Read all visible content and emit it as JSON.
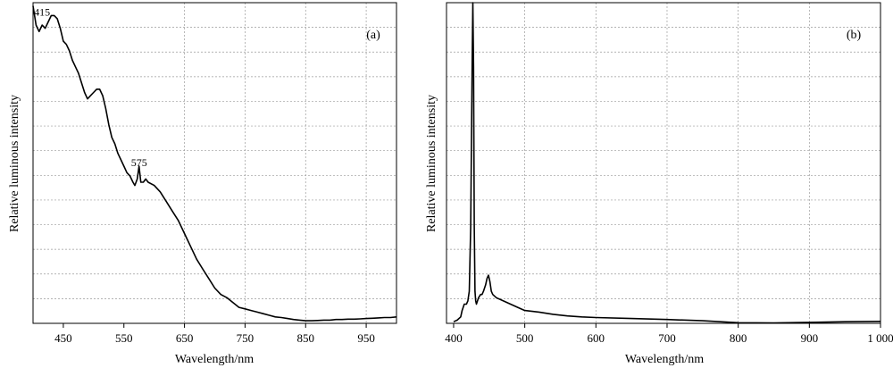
{
  "chart_data": [
    {
      "type": "line",
      "panel_label": "(a)",
      "xlabel": "Wavelength/nm",
      "ylabel": "Relative luminous intensity",
      "xlim": [
        400,
        1000
      ],
      "ylim": [
        0,
        1
      ],
      "x_ticks": [
        450,
        550,
        650,
        750,
        850,
        950
      ],
      "x_tick_labels": [
        "450",
        "550",
        "650",
        "750",
        "850",
        "950"
      ],
      "grid": true,
      "annotations": [
        {
          "text": "415",
          "x": 415,
          "y": 0.96
        },
        {
          "text": "575",
          "x": 575,
          "y": 0.49
        }
      ],
      "series": [
        {
          "x": [
            400,
            405,
            410,
            415,
            420,
            425,
            430,
            435,
            440,
            445,
            450,
            455,
            460,
            465,
            470,
            475,
            480,
            485,
            490,
            495,
            500,
            505,
            510,
            515,
            520,
            525,
            530,
            535,
            540,
            545,
            550,
            555,
            560,
            565,
            568,
            572,
            575,
            578,
            582,
            586,
            590,
            600,
            610,
            620,
            630,
            640,
            650,
            660,
            670,
            680,
            690,
            700,
            710,
            720,
            730,
            740,
            750,
            760,
            770,
            780,
            790,
            800,
            810,
            820,
            830,
            840,
            850,
            860,
            870,
            880,
            890,
            900,
            910,
            920,
            930,
            940,
            950,
            960,
            970,
            980,
            990,
            1000
          ],
          "y": [
            0.99,
            0.93,
            0.91,
            0.93,
            0.92,
            0.94,
            0.96,
            0.96,
            0.95,
            0.92,
            0.88,
            0.87,
            0.85,
            0.82,
            0.8,
            0.78,
            0.75,
            0.72,
            0.7,
            0.71,
            0.72,
            0.73,
            0.73,
            0.71,
            0.67,
            0.62,
            0.58,
            0.56,
            0.53,
            0.51,
            0.49,
            0.47,
            0.46,
            0.44,
            0.43,
            0.45,
            0.49,
            0.44,
            0.44,
            0.45,
            0.44,
            0.43,
            0.41,
            0.38,
            0.35,
            0.32,
            0.28,
            0.24,
            0.2,
            0.17,
            0.14,
            0.11,
            0.09,
            0.08,
            0.065,
            0.05,
            0.045,
            0.04,
            0.035,
            0.03,
            0.025,
            0.02,
            0.018,
            0.015,
            0.012,
            0.01,
            0.008,
            0.008,
            0.009,
            0.01,
            0.01,
            0.012,
            0.012,
            0.013,
            0.013,
            0.014,
            0.015,
            0.016,
            0.017,
            0.018,
            0.018,
            0.02
          ]
        }
      ]
    },
    {
      "type": "line",
      "panel_label": "(b)",
      "xlabel": "Wavelength/nm",
      "ylabel": "Relative luminous intensity",
      "xlim": [
        390,
        1000
      ],
      "ylim": [
        0,
        1
      ],
      "x_ticks": [
        400,
        500,
        600,
        700,
        800,
        900,
        1000
      ],
      "x_tick_labels": [
        "400",
        "500",
        "600",
        "700",
        "800",
        "900",
        "1 000"
      ],
      "grid": true,
      "annotations": [],
      "series": [
        {
          "x": [
            400,
            405,
            410,
            412,
            415,
            418,
            420,
            422,
            424,
            426,
            427,
            428,
            429,
            430,
            431,
            432,
            435,
            438,
            440,
            442,
            445,
            447,
            449,
            451,
            453,
            455,
            460,
            470,
            480,
            490,
            500,
            520,
            540,
            560,
            580,
            600,
            650,
            700,
            750,
            800,
            850,
            900,
            950,
            1000
          ],
          "y": [
            0.005,
            0.01,
            0.02,
            0.04,
            0.06,
            0.06,
            0.07,
            0.1,
            0.3,
            0.8,
            1.0,
            0.8,
            0.3,
            0.1,
            0.07,
            0.06,
            0.08,
            0.09,
            0.09,
            0.1,
            0.12,
            0.14,
            0.15,
            0.13,
            0.1,
            0.09,
            0.08,
            0.07,
            0.06,
            0.05,
            0.04,
            0.035,
            0.028,
            0.023,
            0.02,
            0.018,
            0.015,
            0.012,
            0.008,
            0.002,
            0.001,
            0.003,
            0.005,
            0.006
          ]
        }
      ]
    }
  ]
}
